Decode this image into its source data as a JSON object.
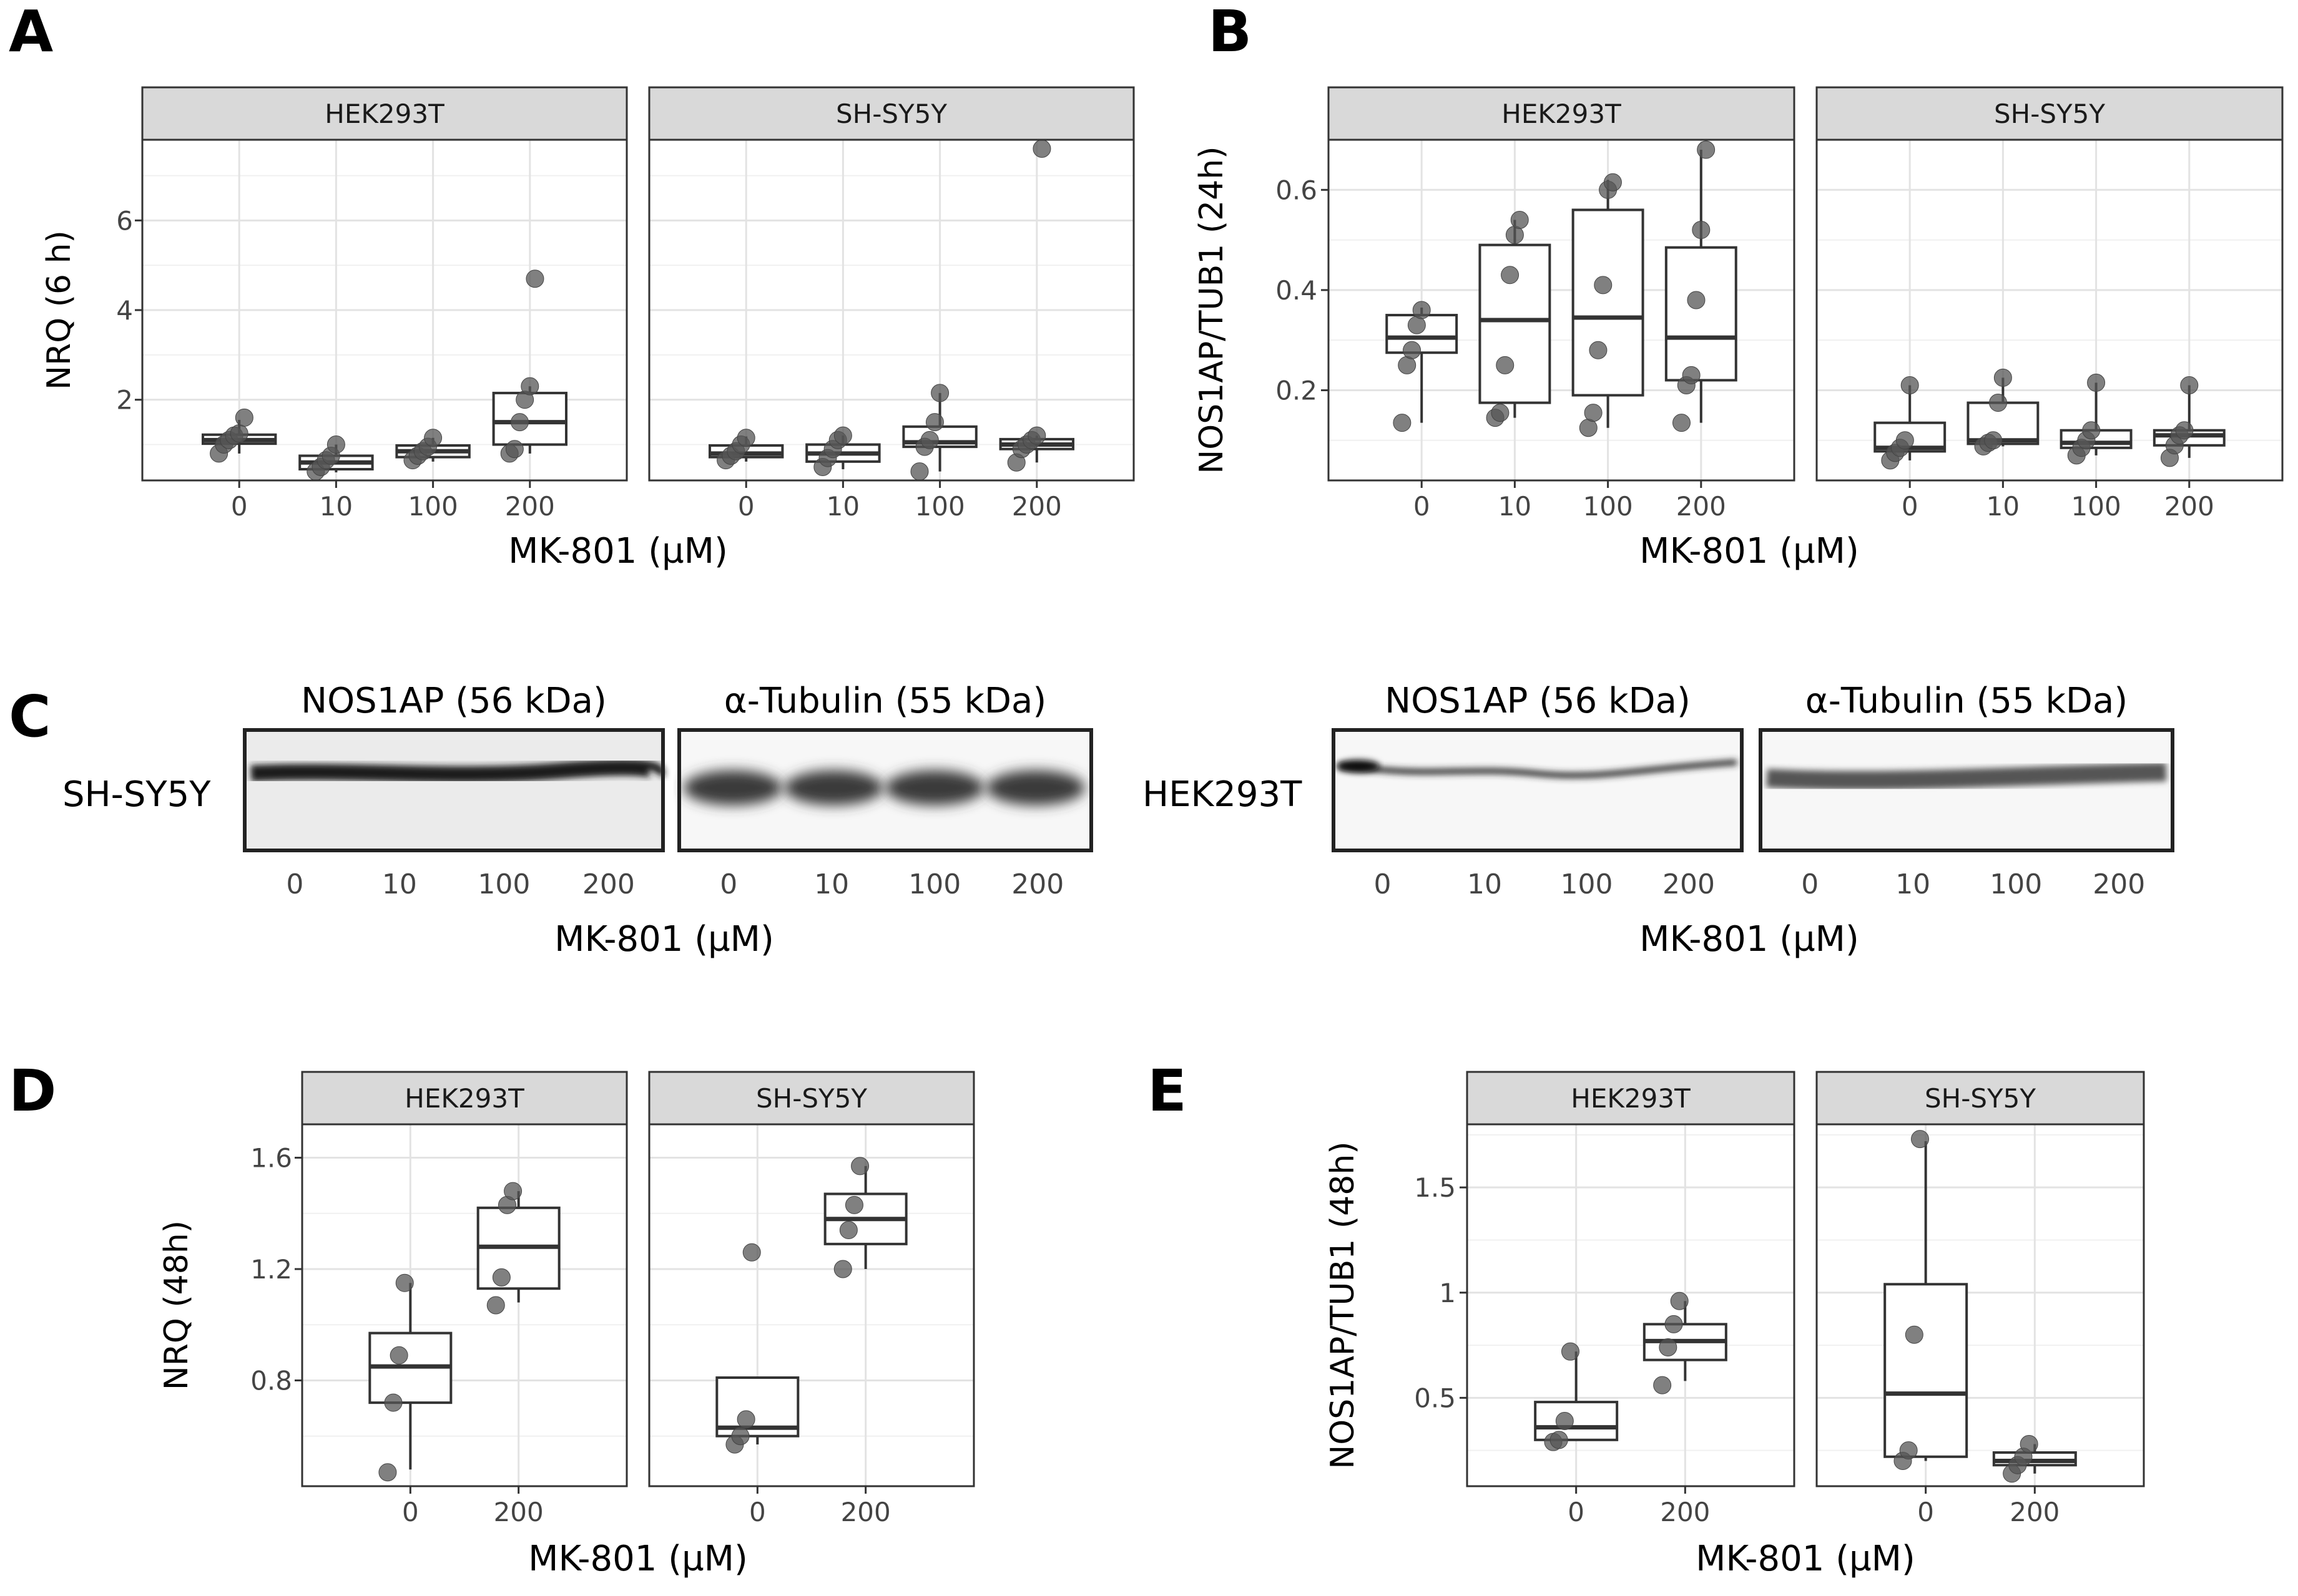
{
  "panels": {
    "A": {
      "letter": "A",
      "ylabel": "NRQ (6 h)",
      "xlabel": "MK-801 (µM)"
    },
    "B": {
      "letter": "B",
      "ylabel": "NOS1AP/TUB1 (24h)",
      "xlabel": "MK-801 (µM)"
    },
    "C": {
      "letter": "C",
      "xlabel": "MK-801 (µM)"
    },
    "D": {
      "letter": "D",
      "ylabel": "NRQ (48h)",
      "xlabel": "MK-801 (µM)"
    },
    "E": {
      "letter": "E",
      "ylabel": "NOS1AP/TUB1 (48h)",
      "xlabel": "MK-801 (µM)"
    }
  },
  "chart_data": [
    {
      "panel": "A",
      "type": "box",
      "ylabel": "NRQ (6 h)",
      "xlabel": "MK-801 (µM)",
      "categories": [
        "0",
        "10",
        "100",
        "200"
      ],
      "ylim": [
        0.2,
        7.8
      ],
      "yticks": [
        2,
        4,
        6
      ],
      "facets": [
        {
          "title": "HEK293T",
          "groups": [
            {
              "box": [
                1.02,
                1.1,
                1.22
              ],
              "whisker": [
                0.8,
                1.55
              ],
              "points": [
                0.8,
                1.0,
                1.1,
                1.2,
                1.25,
                1.6
              ]
            },
            {
              "box": [
                0.45,
                0.6,
                0.75
              ],
              "whisker": [
                0.38,
                1.0
              ],
              "points": [
                0.4,
                0.5,
                0.65,
                0.75,
                1.0
              ]
            },
            {
              "box": [
                0.72,
                0.85,
                0.98
              ],
              "whisker": [
                0.62,
                1.15
              ],
              "points": [
                0.65,
                0.75,
                0.85,
                0.95,
                1.15
              ]
            },
            {
              "box": [
                1.0,
                1.5,
                2.15
              ],
              "whisker": [
                0.8,
                2.3
              ],
              "points": [
                0.8,
                0.9,
                1.5,
                2.0,
                2.3,
                4.7
              ]
            }
          ]
        },
        {
          "title": "SH-SY5Y",
          "groups": [
            {
              "box": [
                0.72,
                0.8,
                0.98
              ],
              "whisker": [
                0.62,
                1.18
              ],
              "points": [
                0.65,
                0.75,
                0.85,
                1.0,
                1.15
              ]
            },
            {
              "box": [
                0.62,
                0.8,
                1.0
              ],
              "whisker": [
                0.45,
                1.2
              ],
              "points": [
                0.5,
                0.7,
                0.9,
                1.1,
                1.2
              ]
            },
            {
              "box": [
                0.95,
                1.05,
                1.4
              ],
              "whisker": [
                0.4,
                2.15
              ],
              "points": [
                0.4,
                0.95,
                1.1,
                1.5,
                2.15
              ]
            },
            {
              "box": [
                0.9,
                1.0,
                1.12
              ],
              "whisker": [
                0.6,
                1.2
              ],
              "points": [
                0.6,
                0.9,
                1.0,
                1.1,
                1.2,
                7.6
              ]
            }
          ]
        }
      ]
    },
    {
      "panel": "B",
      "type": "box",
      "ylabel": "NOS1AP/TUB1 (24h)",
      "xlabel": "MK-801 (µM)",
      "categories": [
        "0",
        "10",
        "100",
        "200"
      ],
      "ylim": [
        0.02,
        0.7
      ],
      "yticks": [
        0.2,
        0.4,
        0.6
      ],
      "facets": [
        {
          "title": "HEK293T",
          "groups": [
            {
              "box": [
                0.275,
                0.305,
                0.35
              ],
              "whisker": [
                0.135,
                0.365
              ],
              "points": [
                0.135,
                0.25,
                0.28,
                0.33,
                0.36
              ]
            },
            {
              "box": [
                0.175,
                0.34,
                0.49
              ],
              "whisker": [
                0.145,
                0.54
              ],
              "points": [
                0.145,
                0.155,
                0.25,
                0.43,
                0.51,
                0.54
              ]
            },
            {
              "box": [
                0.19,
                0.345,
                0.56
              ],
              "whisker": [
                0.125,
                0.62
              ],
              "points": [
                0.125,
                0.155,
                0.28,
                0.41,
                0.6,
                0.615
              ]
            },
            {
              "box": [
                0.22,
                0.305,
                0.485
              ],
              "whisker": [
                0.135,
                0.68
              ],
              "points": [
                0.135,
                0.21,
                0.23,
                0.38,
                0.52,
                0.68
              ]
            }
          ]
        },
        {
          "title": "SH-SY5Y",
          "groups": [
            {
              "box": [
                0.078,
                0.085,
                0.135
              ],
              "whisker": [
                0.06,
                0.21
              ],
              "points": [
                0.06,
                0.075,
                0.085,
                0.1,
                0.21
              ]
            },
            {
              "box": [
                0.093,
                0.1,
                0.175
              ],
              "whisker": [
                0.088,
                0.225
              ],
              "points": [
                0.088,
                0.095,
                0.1,
                0.175,
                0.225
              ]
            },
            {
              "box": [
                0.085,
                0.095,
                0.12
              ],
              "whisker": [
                0.07,
                0.215
              ],
              "points": [
                0.07,
                0.085,
                0.1,
                0.12,
                0.215
              ]
            },
            {
              "box": [
                0.09,
                0.11,
                0.12
              ],
              "whisker": [
                0.065,
                0.21
              ],
              "points": [
                0.065,
                0.09,
                0.11,
                0.12,
                0.21
              ]
            }
          ]
        }
      ]
    },
    {
      "panel": "D",
      "type": "box",
      "ylabel": "NRQ (48h)",
      "xlabel": "MK-801 (µM)",
      "categories": [
        "0",
        "200"
      ],
      "ylim": [
        0.42,
        1.72
      ],
      "yticks": [
        0.8,
        1.2,
        1.6
      ],
      "facets": [
        {
          "title": "HEK293T",
          "groups": [
            {
              "box": [
                0.72,
                0.85,
                0.97
              ],
              "whisker": [
                0.48,
                1.15
              ],
              "points": [
                0.47,
                0.72,
                0.89,
                1.15
              ]
            },
            {
              "box": [
                1.13,
                1.28,
                1.42
              ],
              "whisker": [
                1.08,
                1.48
              ],
              "points": [
                1.07,
                1.17,
                1.43,
                1.48
              ]
            }
          ]
        },
        {
          "title": "SH-SY5Y",
          "groups": [
            {
              "box": [
                0.6,
                0.63,
                0.81
              ],
              "whisker": [
                0.57,
                0.81
              ],
              "points": [
                0.57,
                0.6,
                0.66,
                1.26
              ]
            },
            {
              "box": [
                1.29,
                1.38,
                1.47
              ],
              "whisker": [
                1.2,
                1.57
              ],
              "points": [
                1.2,
                1.34,
                1.43,
                1.57
              ]
            }
          ]
        }
      ]
    },
    {
      "panel": "E",
      "type": "box",
      "ylabel": "NOS1AP/TUB1 (48h)",
      "xlabel": "MK-801 (µM)",
      "categories": [
        "0",
        "200"
      ],
      "ylim": [
        0.08,
        1.8
      ],
      "yticks": [
        0.5,
        1.0,
        1.5
      ],
      "facets": [
        {
          "title": "HEK293T",
          "groups": [
            {
              "box": [
                0.3,
                0.36,
                0.48
              ],
              "whisker": [
                0.3,
                0.72
              ],
              "points": [
                0.29,
                0.3,
                0.39,
                0.72
              ]
            },
            {
              "box": [
                0.68,
                0.77,
                0.85
              ],
              "whisker": [
                0.58,
                0.96
              ],
              "points": [
                0.56,
                0.74,
                0.85,
                0.96
              ]
            }
          ]
        },
        {
          "title": "SH-SY5Y",
          "groups": [
            {
              "box": [
                0.22,
                0.52,
                1.04
              ],
              "whisker": [
                0.2,
                1.72
              ],
              "points": [
                0.2,
                0.25,
                0.8,
                1.73
              ]
            },
            {
              "box": [
                0.18,
                0.2,
                0.24
              ],
              "whisker": [
                0.14,
                0.28
              ],
              "points": [
                0.14,
                0.18,
                0.22,
                0.28
              ]
            }
          ]
        }
      ]
    }
  ],
  "blots": [
    {
      "row_label": "SH-SY5Y",
      "lanes": [
        "0",
        "10",
        "100",
        "200"
      ],
      "left_title": "NOS1AP (56 kDa)",
      "right_title": "α-Tubulin (55 kDa)"
    },
    {
      "row_label": "HEK293T",
      "lanes": [
        "0",
        "10",
        "100",
        "200"
      ],
      "left_title": "NOS1AP (56 kDa)",
      "right_title": "α-Tubulin (55 kDa)"
    }
  ]
}
